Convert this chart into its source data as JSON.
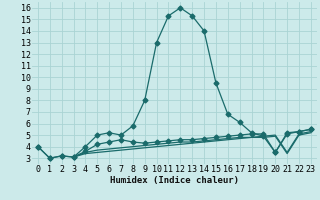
{
  "background_color": "#cceaea",
  "grid_color": "#aad4d4",
  "line_color": "#1a6b6b",
  "xlabel": "Humidex (Indice chaleur)",
  "xlim": [
    -0.5,
    23.5
  ],
  "ylim": [
    2.5,
    16.5
  ],
  "xticks": [
    0,
    1,
    2,
    3,
    4,
    5,
    6,
    7,
    8,
    9,
    10,
    11,
    12,
    13,
    14,
    15,
    16,
    17,
    18,
    19,
    20,
    21,
    22,
    23
  ],
  "yticks": [
    3,
    4,
    5,
    6,
    7,
    8,
    9,
    10,
    11,
    12,
    13,
    14,
    15,
    16
  ],
  "line1_x": [
    0,
    1,
    2,
    3,
    4,
    5,
    6,
    7,
    8,
    9,
    10,
    11,
    12,
    13,
    14,
    15,
    16,
    17,
    18,
    19,
    20,
    21,
    22,
    23
  ],
  "line1_y": [
    4.0,
    3.0,
    3.2,
    3.1,
    4.0,
    5.0,
    5.2,
    5.0,
    5.8,
    8.0,
    13.0,
    15.3,
    16.0,
    15.3,
    14.0,
    9.5,
    6.8,
    6.1,
    5.2,
    4.9,
    3.5,
    5.1,
    5.3,
    5.5
  ],
  "line2_x": [
    0,
    1,
    2,
    3,
    4,
    5,
    6,
    7,
    8,
    9,
    10,
    11,
    12,
    13,
    14,
    15,
    16,
    17,
    18,
    19,
    20,
    21,
    22,
    23
  ],
  "line2_y": [
    4.0,
    3.0,
    3.2,
    3.1,
    3.6,
    4.2,
    4.4,
    4.6,
    4.4,
    4.3,
    4.4,
    4.5,
    4.6,
    4.6,
    4.7,
    4.8,
    4.9,
    5.0,
    5.1,
    5.1,
    3.5,
    5.2,
    5.3,
    5.5
  ],
  "line3_x": [
    3,
    4,
    5,
    6,
    7,
    8,
    9,
    10,
    11,
    12,
    13,
    14,
    15,
    16,
    17,
    18,
    19,
    20,
    21,
    22,
    23
  ],
  "line3_y": [
    3.1,
    3.5,
    3.7,
    3.8,
    3.9,
    4.0,
    4.1,
    4.2,
    4.3,
    4.4,
    4.4,
    4.5,
    4.6,
    4.7,
    4.8,
    4.8,
    4.9,
    5.0,
    3.5,
    5.1,
    5.3
  ],
  "line4_x": [
    3,
    4,
    5,
    6,
    7,
    8,
    9,
    10,
    11,
    12,
    13,
    14,
    15,
    16,
    17,
    18,
    19,
    20,
    21,
    22,
    23
  ],
  "line4_y": [
    3.1,
    3.4,
    3.5,
    3.6,
    3.7,
    3.8,
    3.9,
    4.0,
    4.1,
    4.2,
    4.3,
    4.4,
    4.5,
    4.6,
    4.7,
    4.8,
    4.8,
    4.9,
    3.4,
    5.0,
    5.2
  ],
  "markersize": 2.5,
  "linewidth": 0.9,
  "tick_fontsize": 6.0,
  "label_fontsize": 6.5
}
